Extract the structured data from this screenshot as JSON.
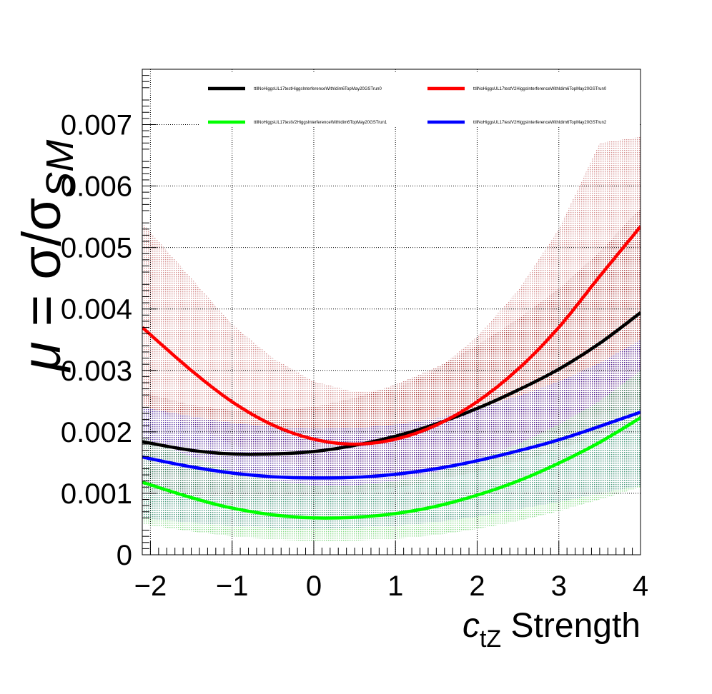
{
  "chart_data": {
    "type": "line",
    "xlabel": {
      "symbol": "c",
      "subscript": "tZ",
      "suffix": " Strength"
    },
    "ylabel": {
      "mu": "μ",
      "equals": " = σ/σ",
      "subscript": "SM"
    },
    "xlim": [
      -2.1,
      4.0
    ],
    "ylim": [
      0,
      0.0079
    ],
    "xticks": [
      -2,
      -1,
      0,
      1,
      2,
      3,
      4
    ],
    "xtick_labels": [
      "−2",
      "−1",
      "0",
      "1",
      "2",
      "3",
      "4"
    ],
    "yticks": [
      0,
      0.001,
      0.002,
      0.003,
      0.004,
      0.005,
      0.006,
      0.007
    ],
    "ytick_labels": [
      "0",
      "0.001",
      "0.002",
      "0.003",
      "0.004",
      "0.005",
      "0.006",
      "0.007"
    ],
    "grid": true,
    "legend_position": "top",
    "series": [
      {
        "name": "ttllNoHiggsUL17testHiggsInterferenceWithIdim6TopMay20GSTrun0",
        "color": "#000000",
        "band_color": "#8b0000",
        "x": [
          -2.1,
          -1.5,
          -1.0,
          -0.5,
          0.0,
          0.5,
          1.0,
          1.5,
          2.0,
          2.5,
          3.0,
          3.5,
          4.0
        ],
        "y": [
          0.00184,
          0.0017,
          0.00164,
          0.00164,
          0.00168,
          0.00178,
          0.00193,
          0.00213,
          0.00238,
          0.00268,
          0.00302,
          0.00344,
          0.00394
        ],
        "band_lo": [
          0.00104,
          0.00096,
          0.00093,
          0.00093,
          0.00095,
          0.00101,
          0.00109,
          0.00121,
          0.00135,
          0.00152,
          0.00171,
          0.00195,
          0.00223
        ],
        "band_hi": [
          0.00264,
          0.00244,
          0.00235,
          0.00235,
          0.00241,
          0.00255,
          0.00277,
          0.00305,
          0.00341,
          0.00384,
          0.00433,
          0.00493,
          0.00565
        ]
      },
      {
        "name": "ttllNoHiggsUL17testV2HiggsInterferenceWithIdim6TopMay20GSTrun0",
        "color": "#ff0000",
        "band_color": "#b03030",
        "x": [
          -2.1,
          -1.5,
          -1.0,
          -0.5,
          0.0,
          0.5,
          1.0,
          1.5,
          2.0,
          2.5,
          3.0,
          3.5,
          4.0
        ],
        "y": [
          0.0037,
          0.003,
          0.00249,
          0.00211,
          0.00188,
          0.0018,
          0.00188,
          0.00211,
          0.00249,
          0.00302,
          0.0037,
          0.00453,
          0.00534
        ],
        "band_lo": [
          0.00245,
          0.0021,
          0.0018,
          0.00155,
          0.00138,
          0.00128,
          0.0013,
          0.0014,
          0.0016,
          0.0018,
          0.00205,
          0.00228,
          0.00248
        ],
        "band_hi": [
          0.0054,
          0.0045,
          0.00375,
          0.0032,
          0.00282,
          0.00265,
          0.0027,
          0.003,
          0.00355,
          0.0043,
          0.0053,
          0.0067,
          0.0068
        ]
      },
      {
        "name": "ttllNoHiggsUL17testV2HiggsInterferenceWithIdim6TopMay20GSTrun1",
        "color": "#00ff00",
        "band_color": "#22bb22",
        "x": [
          -2.1,
          -1.5,
          -1.0,
          -0.5,
          0.0,
          0.5,
          1.0,
          1.5,
          2.0,
          2.5,
          3.0,
          3.5,
          4.0
        ],
        "y": [
          0.00118,
          0.00093,
          0.00076,
          0.00065,
          0.0006,
          0.00061,
          0.00067,
          0.00079,
          0.00097,
          0.0012,
          0.00149,
          0.00183,
          0.00223
        ],
        "band_lo": [
          0.0005,
          0.00038,
          0.0003,
          0.00025,
          0.00022,
          0.00023,
          0.00026,
          0.00032,
          0.00042,
          0.00055,
          0.00071,
          0.0009,
          0.0011
        ],
        "band_hi": [
          0.0019,
          0.0016,
          0.00136,
          0.0012,
          0.00113,
          0.00113,
          0.0012,
          0.00134,
          0.00155,
          0.0018,
          0.00212,
          0.0025,
          0.003
        ]
      },
      {
        "name": "ttllNoHiggsUL17testV2HiggsInterferenceWithIdim6TopMay20GSTrun2",
        "color": "#0000ff",
        "band_color": "#0000cc",
        "x": [
          -2.1,
          -1.5,
          -1.0,
          -0.5,
          0.0,
          0.5,
          1.0,
          1.5,
          2.0,
          2.5,
          3.0,
          3.5,
          4.0
        ],
        "y": [
          0.00159,
          0.00143,
          0.00133,
          0.00127,
          0.00125,
          0.00126,
          0.00131,
          0.0014,
          0.00153,
          0.00169,
          0.00187,
          0.00209,
          0.00232
        ],
        "band_lo": [
          0.0006,
          0.00052,
          0.00047,
          0.00044,
          0.00043,
          0.00044,
          0.00047,
          0.00053,
          0.00062,
          0.00074,
          0.00086,
          0.001,
          0.00112
        ],
        "band_hi": [
          0.0024,
          0.00225,
          0.00215,
          0.00208,
          0.00205,
          0.00206,
          0.00212,
          0.00222,
          0.00238,
          0.00258,
          0.00282,
          0.00312,
          0.0035
        ]
      }
    ]
  }
}
